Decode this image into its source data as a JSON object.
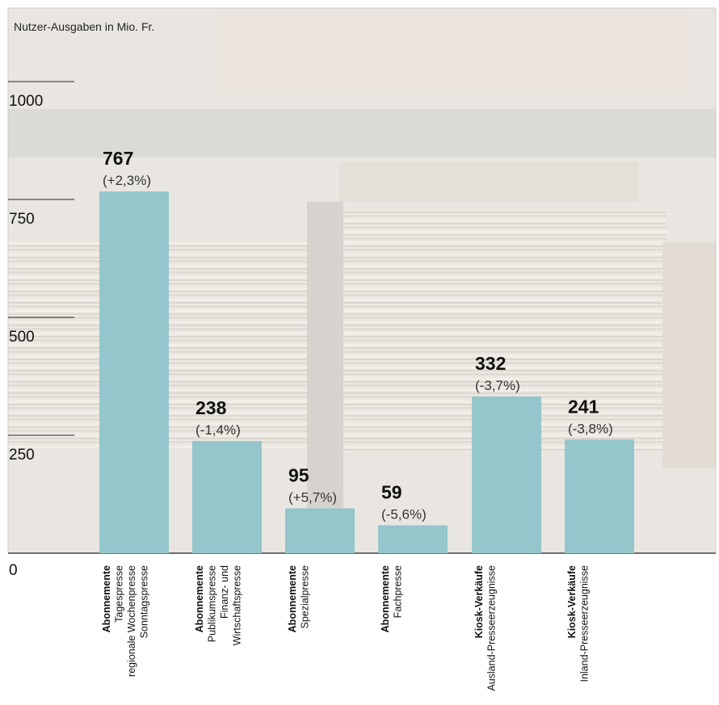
{
  "chart_data": {
    "type": "bar",
    "header": "Nutzer-Ausgaben in Mio. Fr.",
    "ylim": [
      0,
      1000
    ],
    "yticks": [
      0,
      250,
      500,
      750,
      1000
    ],
    "categories": [
      {
        "bold": "Abonnemente",
        "lines": [
          "Tagespresse",
          "regionale Wochenpresse",
          "Sonntagspresse"
        ]
      },
      {
        "bold": "Abonnemente",
        "lines": [
          "Publikumspresse",
          "Finanz- und",
          "Wirtschaftspresse"
        ]
      },
      {
        "bold": "Abonnemente",
        "lines": [
          "Spezialpresse"
        ]
      },
      {
        "bold": "Abonnemente",
        "lines": [
          "Fachpresse"
        ]
      },
      {
        "bold": "Kiosk-Verkäufe",
        "lines": [
          "Ausland-Presseerzeugnisse"
        ]
      },
      {
        "bold": "Kiosk-Verkäufe",
        "lines": [
          "Inland-Presseerzeugnisse"
        ]
      }
    ],
    "values": [
      767,
      238,
      95,
      59,
      332,
      241
    ],
    "value_labels": [
      "767",
      "238",
      "95",
      "59",
      "332",
      "241"
    ],
    "changes": [
      "(+2,3%)",
      "(-1,4%)",
      "(+5,7%)",
      "(-5,6%)",
      "(-3,7%)",
      "(-3,8%)"
    ],
    "bar_color": "#94c6cc",
    "background": "photo of stacked magazines (faded)"
  }
}
